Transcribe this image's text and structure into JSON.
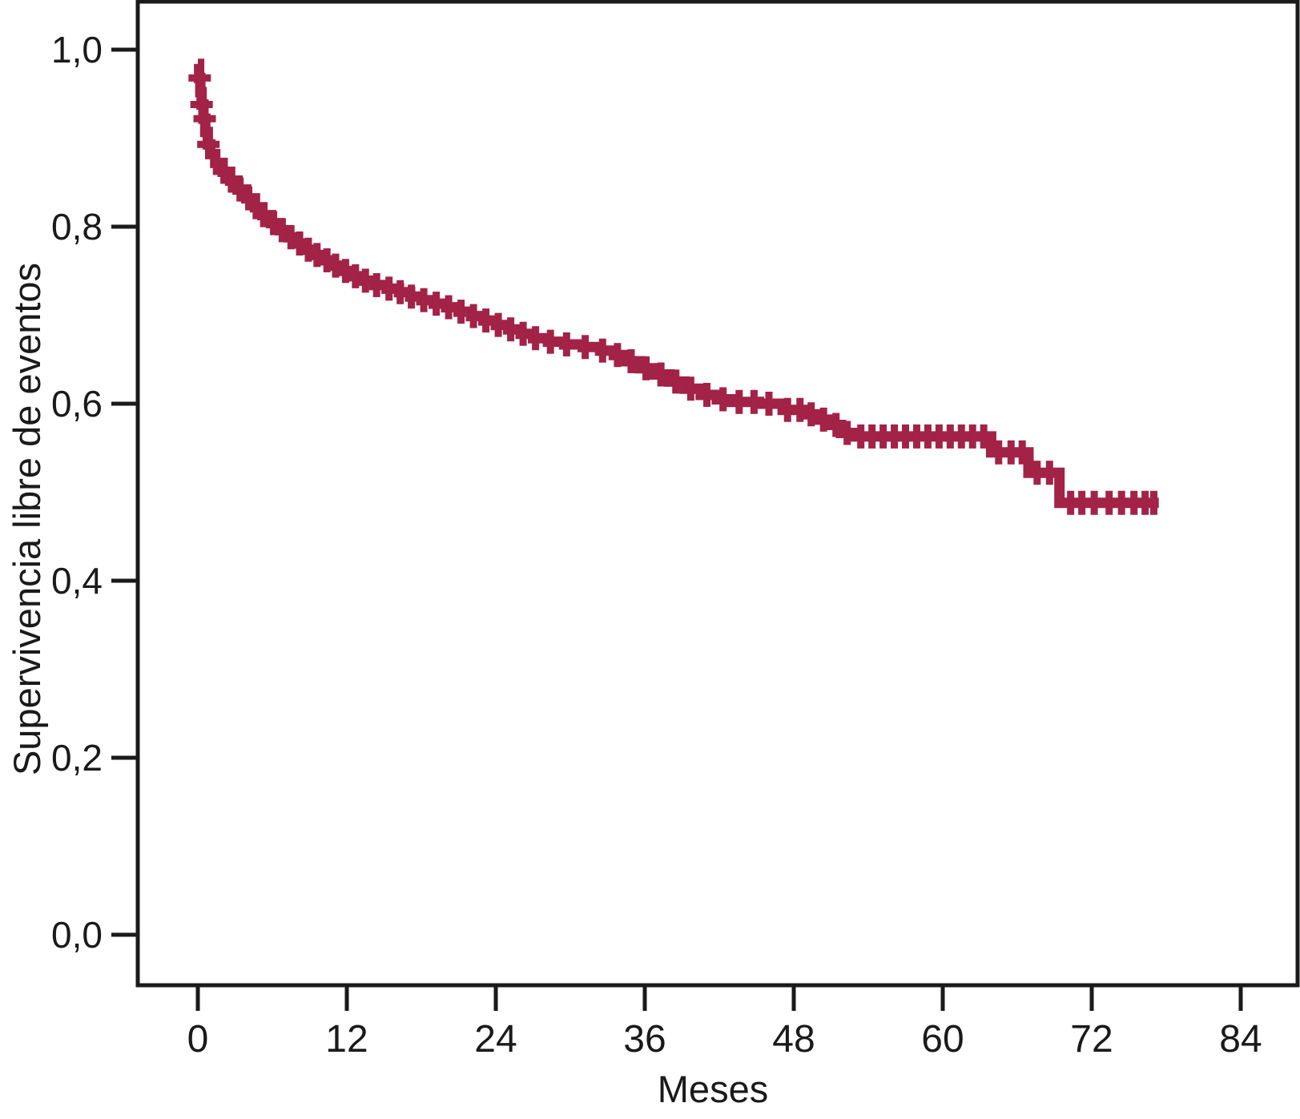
{
  "chart_data": {
    "type": "line",
    "subtype": "kaplan-meier-step-curve",
    "title": "",
    "xlabel": "Meses",
    "ylabel": "Supervivencia libre de eventos",
    "xlim": [
      0,
      84
    ],
    "ylim": [
      0.0,
      1.0
    ],
    "x_ticks": [
      0,
      12,
      24,
      36,
      48,
      60,
      72,
      84
    ],
    "xtick_labels": [
      "0",
      "12",
      "24",
      "36",
      "48",
      "60",
      "72",
      "84"
    ],
    "y_ticks": [
      0.0,
      0.2,
      0.4,
      0.6,
      0.8,
      1.0
    ],
    "ytick_labels": [
      "0,0",
      "0,2",
      "0,4",
      "0,6",
      "0,8",
      "1,0"
    ],
    "decimal_separator": ",",
    "grid": false,
    "legend": null,
    "curve_color": "#A22347",
    "axis_color": "#1a1a1a",
    "points_format": [
      "month",
      "survival_probability"
    ],
    "series": [
      {
        "name": "Supervivencia libre de eventos",
        "points": [
          [
            0,
            0.984
          ],
          [
            0.1,
            0.968
          ],
          [
            0.2,
            0.952
          ],
          [
            0.3,
            0.938
          ],
          [
            0.45,
            0.922
          ],
          [
            0.6,
            0.907
          ],
          [
            0.8,
            0.893
          ],
          [
            1.0,
            0.882
          ],
          [
            1.4,
            0.872
          ],
          [
            2.0,
            0.862
          ],
          [
            2.6,
            0.852
          ],
          [
            3.2,
            0.842
          ],
          [
            3.9,
            0.832
          ],
          [
            4.6,
            0.822
          ],
          [
            5.2,
            0.813
          ],
          [
            5.9,
            0.804
          ],
          [
            6.6,
            0.796
          ],
          [
            7.3,
            0.788
          ],
          [
            8.0,
            0.781
          ],
          [
            8.7,
            0.774
          ],
          [
            9.4,
            0.768
          ],
          [
            10.1,
            0.762
          ],
          [
            10.9,
            0.756
          ],
          [
            11.7,
            0.75
          ],
          [
            12.5,
            0.744
          ],
          [
            13.3,
            0.739
          ],
          [
            14.2,
            0.734
          ],
          [
            15.2,
            0.73
          ],
          [
            16.2,
            0.726
          ],
          [
            17.1,
            0.721
          ],
          [
            18.0,
            0.717
          ],
          [
            19.0,
            0.713
          ],
          [
            20.0,
            0.709
          ],
          [
            21.0,
            0.704
          ],
          [
            22.0,
            0.699
          ],
          [
            23.0,
            0.694
          ],
          [
            24.0,
            0.689
          ],
          [
            25.0,
            0.684
          ],
          [
            26.0,
            0.679
          ],
          [
            27.0,
            0.674
          ],
          [
            28.2,
            0.67
          ],
          [
            29.5,
            0.667
          ],
          [
            31.0,
            0.664
          ],
          [
            32.4,
            0.66
          ],
          [
            33.5,
            0.655
          ],
          [
            34.5,
            0.648
          ],
          [
            35.6,
            0.64
          ],
          [
            36.8,
            0.633
          ],
          [
            38.0,
            0.625
          ],
          [
            39.2,
            0.617
          ],
          [
            40.5,
            0.61
          ],
          [
            41.8,
            0.605
          ],
          [
            43.0,
            0.602
          ],
          [
            45.2,
            0.6
          ],
          [
            47.1,
            0.593
          ],
          [
            48.9,
            0.588
          ],
          [
            49.9,
            0.582
          ],
          [
            51.0,
            0.576
          ],
          [
            51.8,
            0.567
          ],
          [
            52.8,
            0.563
          ],
          [
            63.9,
            0.545
          ],
          [
            66.9,
            0.522
          ],
          [
            69.4,
            0.488
          ],
          [
            77.4,
            0.488
          ]
        ],
        "censor_times": [
          0.15,
          0.3,
          0.55,
          0.85,
          1.5,
          2.1,
          2.7,
          3.4,
          4.1,
          4.7,
          5.3,
          6.1,
          6.8,
          7.5,
          8.2,
          8.9,
          9.6,
          10.4,
          11.1,
          11.9,
          12.7,
          13.5,
          14.4,
          15.4,
          16.3,
          17.2,
          18.2,
          19.2,
          20.2,
          21.2,
          22.2,
          23.2,
          24.2,
          25.2,
          26.2,
          27.2,
          28.4,
          29.7,
          31.2,
          32.6,
          33.8,
          34.9,
          36.1,
          37.3,
          38.5,
          39.7,
          41.0,
          42.3,
          43.6,
          44.8,
          46.0,
          47.5,
          48.5,
          49.4,
          50.4,
          51.4,
          52.3,
          53.4,
          54.3,
          55.2,
          56.1,
          57.0,
          57.9,
          58.8,
          59.7,
          60.6,
          61.5,
          62.4,
          63.3,
          64.5,
          65.5,
          66.4,
          67.6,
          68.6,
          70.3,
          71.2,
          72.2,
          73.4,
          74.4,
          75.4,
          76.3,
          77.0
        ]
      }
    ]
  }
}
